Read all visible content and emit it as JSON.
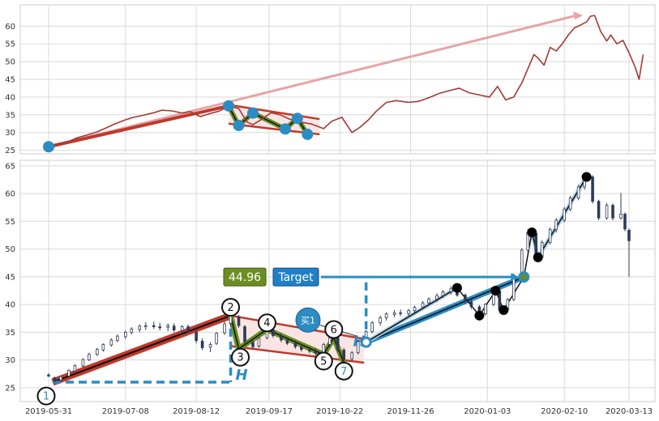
{
  "chart_data": [
    {
      "type": "line",
      "panel": "overview",
      "ylim": [
        24,
        66
      ],
      "yticks": [
        25,
        30,
        35,
        40,
        45,
        50,
        55,
        60
      ],
      "grid": true,
      "series": [
        {
          "color": "#a33a35",
          "points": [
            [
              "2019-05-31",
              26.5
            ],
            [
              "2019-06-05",
              26.8
            ],
            [
              "2019-06-10",
              27.5
            ],
            [
              "2019-06-14",
              28.5
            ],
            [
              "2019-06-19",
              29.3
            ],
            [
              "2019-06-24",
              30.2
            ],
            [
              "2019-06-28",
              31.2
            ],
            [
              "2019-07-03",
              32.5
            ],
            [
              "2019-07-08",
              33.6
            ],
            [
              "2019-07-12",
              34.3
            ],
            [
              "2019-07-17",
              34.9
            ],
            [
              "2019-07-22",
              35.6
            ],
            [
              "2019-07-26",
              36.3
            ],
            [
              "2019-07-31",
              36.1
            ],
            [
              "2019-08-05",
              35.5
            ],
            [
              "2019-08-09",
              35.9
            ],
            [
              "2019-08-14",
              34.5
            ],
            [
              "2019-08-19",
              35.4
            ],
            [
              "2019-08-23",
              36.0
            ],
            [
              "2019-08-28",
              37.3
            ],
            [
              "2019-09-02",
              36.8
            ],
            [
              "2019-09-06",
              33.0
            ],
            [
              "2019-09-09",
              32.2
            ],
            [
              "2019-09-13",
              33.6
            ],
            [
              "2019-09-18",
              35.6
            ],
            [
              "2019-09-23",
              34.9
            ],
            [
              "2019-09-27",
              33.8
            ],
            [
              "2019-10-02",
              33.0
            ],
            [
              "2019-10-08",
              32.4
            ],
            [
              "2019-10-14",
              31.1
            ],
            [
              "2019-10-18",
              33.2
            ],
            [
              "2019-10-23",
              34.3
            ],
            [
              "2019-10-28",
              30.0
            ],
            [
              "2019-11-01",
              31.5
            ],
            [
              "2019-11-05",
              33.5
            ],
            [
              "2019-11-09",
              36.0
            ],
            [
              "2019-11-14",
              38.5
            ],
            [
              "2019-11-19",
              39.0
            ],
            [
              "2019-11-25",
              38.5
            ],
            [
              "2019-11-30",
              38.8
            ],
            [
              "2019-12-05",
              39.8
            ],
            [
              "2019-12-10",
              41.0
            ],
            [
              "2019-12-15",
              41.8
            ],
            [
              "2019-12-20",
              42.5
            ],
            [
              "2019-12-25",
              41.2
            ],
            [
              "2019-12-30",
              40.6
            ],
            [
              "2020-01-04",
              40.0
            ],
            [
              "2020-01-08",
              43.0
            ],
            [
              "2020-01-12",
              39.2
            ],
            [
              "2020-01-16",
              40.0
            ],
            [
              "2020-01-20",
              44.0
            ],
            [
              "2020-01-23",
              48.0
            ],
            [
              "2020-01-26",
              52.0
            ],
            [
              "2020-01-28",
              51.0
            ],
            [
              "2020-01-31",
              49.0
            ],
            [
              "2020-02-03",
              54.0
            ],
            [
              "2020-02-06",
              53.0
            ],
            [
              "2020-02-09",
              55.0
            ],
            [
              "2020-02-12",
              57.5
            ],
            [
              "2020-02-15",
              59.5
            ],
            [
              "2020-02-18",
              60.3
            ],
            [
              "2020-02-21",
              61.2
            ],
            [
              "2020-02-23",
              62.8
            ],
            [
              "2020-02-25",
              63.0
            ],
            [
              "2020-02-28",
              58.5
            ],
            [
              "2020-03-02",
              55.8
            ],
            [
              "2020-03-04",
              57.5
            ],
            [
              "2020-03-07",
              55.0
            ],
            [
              "2020-03-10",
              56.0
            ],
            [
              "2020-03-13",
              52.5
            ],
            [
              "2020-03-16",
              48.5
            ],
            [
              "2020-03-18",
              45.0
            ],
            [
              "2020-03-20",
              52.0
            ]
          ]
        }
      ],
      "pattern_points": [
        [
          "2019-08-28",
          37.5
        ],
        [
          "2019-09-02",
          32.0
        ],
        [
          "2019-09-09",
          35.5
        ],
        [
          "2019-09-25",
          31.0
        ],
        [
          "2019-10-01",
          34.0
        ],
        [
          "2019-10-06",
          29.5
        ]
      ],
      "start_point": [
        "2019-05-31",
        26.0
      ],
      "channel_top": [
        [
          "2019-08-28",
          37.8
        ],
        [
          "2019-10-12",
          33.8
        ]
      ],
      "channel_bottom": [
        [
          "2019-08-28",
          32.5
        ],
        [
          "2019-10-12",
          29.5
        ]
      ],
      "arrow_to": [
        "2020-02-16",
        63.0
      ]
    },
    {
      "type": "candlestick",
      "panel": "detail",
      "ylim": [
        22.5,
        66
      ],
      "yticks": [
        25,
        30,
        35,
        40,
        45,
        50,
        55,
        60,
        65
      ],
      "x_ticks": [
        "2019-05-31",
        "2019-07-08",
        "2019-08-12",
        "2019-09-17",
        "2019-10-22",
        "2019-11-26",
        "2020-01-03",
        "2020-02-10",
        "2020-03-13"
      ],
      "grid": true,
      "candles": [
        [
          "2019-05-31",
          27.3,
          27.6,
          26.9,
          27.1
        ],
        [
          "2019-06-03",
          26.8,
          27.0,
          25.9,
          26.2
        ],
        [
          "2019-06-06",
          26.4,
          27.2,
          26.2,
          27.0
        ],
        [
          "2019-06-10",
          27.1,
          28.3,
          27.0,
          28.1
        ],
        [
          "2019-06-13",
          28.0,
          29.2,
          27.8,
          29.0
        ],
        [
          "2019-06-17",
          28.9,
          30.3,
          28.7,
          30.1
        ],
        [
          "2019-06-20",
          30.0,
          31.3,
          29.8,
          31.0
        ],
        [
          "2019-06-24",
          31.0,
          32.2,
          30.7,
          31.9
        ],
        [
          "2019-06-27",
          31.8,
          33.0,
          31.5,
          32.8
        ],
        [
          "2019-07-01",
          32.7,
          33.9,
          32.4,
          33.6
        ],
        [
          "2019-07-04",
          33.5,
          34.6,
          33.2,
          34.3
        ],
        [
          "2019-07-08",
          34.2,
          35.3,
          33.8,
          35.0
        ],
        [
          "2019-07-11",
          35.0,
          35.9,
          34.6,
          35.6
        ],
        [
          "2019-07-15",
          35.5,
          36.4,
          35.0,
          36.1
        ],
        [
          "2019-07-18",
          36.0,
          36.8,
          35.4,
          36.2
        ],
        [
          "2019-07-22",
          36.2,
          36.9,
          35.6,
          36.0
        ],
        [
          "2019-07-25",
          36.0,
          36.7,
          35.3,
          35.8
        ],
        [
          "2019-07-29",
          35.9,
          36.6,
          35.2,
          36.2
        ],
        [
          "2019-08-01",
          36.1,
          36.6,
          35.0,
          35.4
        ],
        [
          "2019-08-05",
          35.3,
          36.3,
          34.6,
          36.0
        ],
        [
          "2019-08-08",
          36.0,
          36.4,
          34.8,
          35.1
        ],
        [
          "2019-08-12",
          35.0,
          35.4,
          33.0,
          33.5
        ],
        [
          "2019-08-15",
          33.4,
          33.9,
          31.8,
          32.2
        ],
        [
          "2019-08-19",
          32.3,
          33.2,
          31.4,
          32.8
        ],
        [
          "2019-08-22",
          33.0,
          35.0,
          32.7,
          34.8
        ],
        [
          "2019-08-26",
          34.9,
          36.9,
          34.5,
          36.5
        ],
        [
          "2019-08-29",
          36.6,
          38.6,
          36.0,
          37.9
        ],
        [
          "2019-09-02",
          37.8,
          38.1,
          35.8,
          36.2
        ],
        [
          "2019-09-05",
          36.0,
          36.3,
          33.0,
          33.3
        ],
        [
          "2019-09-09",
          33.2,
          34.0,
          31.9,
          32.4
        ],
        [
          "2019-09-12",
          32.5,
          34.2,
          32.2,
          33.9
        ],
        [
          "2019-09-16",
          34.0,
          36.0,
          33.7,
          35.5
        ],
        [
          "2019-09-19",
          35.4,
          35.8,
          34.0,
          34.4
        ],
        [
          "2019-09-23",
          34.3,
          34.9,
          33.2,
          33.6
        ],
        [
          "2019-09-26",
          33.6,
          34.1,
          32.7,
          33.0
        ],
        [
          "2019-09-30",
          33.0,
          33.6,
          32.0,
          32.4
        ],
        [
          "2019-10-03",
          32.3,
          32.9,
          31.5,
          31.9
        ],
        [
          "2019-10-07",
          31.8,
          32.4,
          31.2,
          31.6
        ],
        [
          "2019-10-10",
          31.5,
          32.2,
          30.8,
          31.2
        ],
        [
          "2019-10-14",
          31.3,
          33.1,
          31.0,
          32.8
        ],
        [
          "2019-10-17",
          32.8,
          34.3,
          32.4,
          34.0
        ],
        [
          "2019-10-21",
          34.0,
          34.4,
          31.5,
          31.9
        ],
        [
          "2019-10-24",
          31.8,
          32.2,
          29.6,
          30.1
        ],
        [
          "2019-10-28",
          30.2,
          31.6,
          29.8,
          31.3
        ],
        [
          "2019-10-31",
          31.3,
          33.6,
          31.0,
          33.3
        ],
        [
          "2019-11-04",
          33.3,
          35.4,
          33.0,
          35.1
        ],
        [
          "2019-11-07",
          35.1,
          37.0,
          34.8,
          36.7
        ],
        [
          "2019-11-11",
          36.7,
          38.0,
          36.2,
          37.6
        ],
        [
          "2019-11-14",
          37.6,
          38.6,
          37.1,
          38.3
        ],
        [
          "2019-11-18",
          38.2,
          39.0,
          37.7,
          38.5
        ],
        [
          "2019-11-21",
          38.5,
          39.1,
          37.9,
          38.4
        ],
        [
          "2019-11-25",
          38.4,
          39.2,
          37.9,
          38.9
        ],
        [
          "2019-11-28",
          38.9,
          39.8,
          38.5,
          39.5
        ],
        [
          "2019-12-02",
          39.5,
          40.6,
          39.1,
          40.3
        ],
        [
          "2019-12-05",
          40.3,
          41.3,
          39.9,
          41.0
        ],
        [
          "2019-12-09",
          41.0,
          42.0,
          40.5,
          41.6
        ],
        [
          "2019-12-12",
          41.6,
          42.6,
          41.2,
          42.3
        ],
        [
          "2019-12-16",
          42.3,
          43.3,
          41.8,
          42.9
        ],
        [
          "2019-12-19",
          42.9,
          43.3,
          41.4,
          41.7
        ],
        [
          "2019-12-23",
          41.7,
          42.0,
          40.1,
          40.5
        ],
        [
          "2019-12-26",
          40.5,
          40.9,
          39.2,
          39.6
        ],
        [
          "2019-12-30",
          39.6,
          39.9,
          37.9,
          38.3
        ],
        [
          "2020-01-02",
          38.3,
          40.3,
          38.0,
          40.0
        ],
        [
          "2020-01-06",
          40.0,
          42.9,
          39.7,
          42.5
        ],
        [
          "2020-01-09",
          42.4,
          42.7,
          38.7,
          39.1
        ],
        [
          "2020-01-13",
          39.1,
          41.2,
          38.8,
          40.9
        ],
        [
          "2020-01-16",
          40.9,
          45.6,
          40.6,
          45.2
        ],
        [
          "2020-01-20",
          45.2,
          50.2,
          44.9,
          49.8
        ],
        [
          "2020-01-23",
          49.8,
          53.6,
          49.2,
          53.0
        ],
        [
          "2020-01-27",
          52.8,
          53.1,
          48.0,
          48.6
        ],
        [
          "2020-01-30",
          48.6,
          51.6,
          48.2,
          51.2
        ],
        [
          "2020-02-03",
          51.2,
          53.9,
          50.8,
          53.5
        ],
        [
          "2020-02-06",
          53.5,
          55.6,
          53.0,
          55.2
        ],
        [
          "2020-02-10",
          55.2,
          57.6,
          54.8,
          57.2
        ],
        [
          "2020-02-13",
          57.2,
          59.6,
          56.8,
          59.2
        ],
        [
          "2020-02-17",
          59.2,
          61.6,
          58.8,
          61.2
        ],
        [
          "2020-02-20",
          61.2,
          63.6,
          60.7,
          63.0
        ],
        [
          "2020-02-24",
          63.0,
          63.3,
          58.2,
          58.6
        ],
        [
          "2020-02-27",
          58.6,
          58.9,
          55.2,
          55.6
        ],
        [
          "2020-03-02",
          55.6,
          58.3,
          55.3,
          57.9
        ],
        [
          "2020-03-05",
          57.9,
          58.2,
          55.2,
          55.6
        ],
        [
          "2020-03-09",
          55.6,
          60.1,
          55.3,
          56.3
        ],
        [
          "2020-03-11",
          56.3,
          56.6,
          53.2,
          53.6
        ],
        [
          "2020-03-13",
          53.4,
          53.7,
          45.0,
          51.5
        ]
      ],
      "pattern_points": [
        {
          "label": "1",
          "date": "2019-06-02",
          "value": 26.0
        },
        {
          "label": "2",
          "date": "2019-08-29",
          "value": 38.0
        },
        {
          "label": "3",
          "date": "2019-09-02",
          "value": 32.0
        },
        {
          "label": "4",
          "date": "2019-09-16",
          "value": 35.5
        },
        {
          "label": "5",
          "date": "2019-10-14",
          "value": 31.0
        },
        {
          "label": "6",
          "date": "2019-10-19",
          "value": 34.0
        },
        {
          "label": "7",
          "date": "2019-10-24",
          "value": 29.5
        }
      ],
      "label_offsets": {
        "1": [
          -2,
          -2.5
        ],
        "2": [
          0,
          1.5
        ],
        "3": [
          0.5,
          -1.5
        ],
        "4": [
          0,
          1.2
        ],
        "5": [
          0,
          -1.2
        ],
        "6": [
          0,
          1.5
        ],
        "7": [
          0,
          -1.5
        ]
      },
      "channel_top": [
        [
          "2019-08-29",
          38.0
        ],
        [
          "2019-11-03",
          33.8
        ]
      ],
      "channel_bottom": [
        [
          "2019-08-29",
          32.5
        ],
        [
          "2019-11-03",
          29.5
        ]
      ],
      "breakout_point": [
        "2019-11-04",
        33.2
      ],
      "target_point": [
        "2020-01-21",
        44.96
      ],
      "followup_points": [
        [
          "2019-12-19",
          43.0
        ],
        [
          "2019-12-30",
          38.0
        ],
        [
          "2020-01-07",
          42.5
        ],
        [
          "2020-01-11",
          39.0
        ],
        [
          "2020-01-25",
          53.0
        ],
        [
          "2020-01-28",
          48.5
        ],
        [
          "2020-02-21",
          63.0
        ]
      ],
      "height_level": 26.0,
      "target_level": 44.96,
      "target_value_label": "44.96",
      "target_box_label": "Target",
      "buy_label": "买1",
      "height_marker": "H",
      "colors": {
        "price_line": "#a33a35",
        "red_trend": "#c0392b",
        "pattern_fill": "#6b8e23",
        "marker_blue": "#2b8cc4",
        "dark_line": "#111111",
        "channel_fill": "#f9dede",
        "value_box": "#6b8e23",
        "target_box": "#1f7fc8"
      }
    }
  ]
}
